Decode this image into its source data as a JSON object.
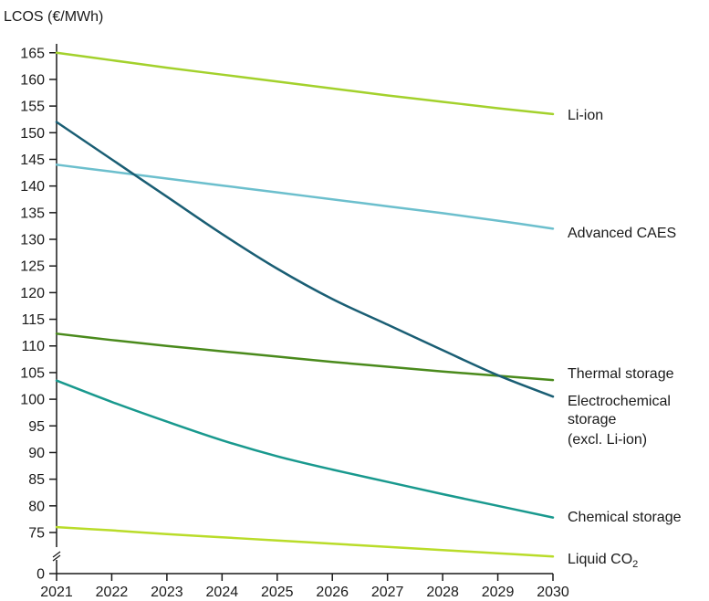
{
  "chart_data": {
    "type": "line",
    "title": "",
    "ylabel": "LCOS (€/MWh)",
    "xlabel": "",
    "x": [
      2021,
      2022,
      2023,
      2024,
      2025,
      2026,
      2027,
      2028,
      2029,
      2030
    ],
    "x_ticks": [
      "2021",
      "2022",
      "2023",
      "2024",
      "2025",
      "2026",
      "2027",
      "2028",
      "2029",
      "2030"
    ],
    "y_ticks": [
      "0",
      "75",
      "80",
      "85",
      "90",
      "95",
      "100",
      "105",
      "110",
      "115",
      "120",
      "125",
      "130",
      "135",
      "140",
      "145",
      "150",
      "155",
      "160",
      "165"
    ],
    "ylim": [
      70,
      166
    ],
    "y_axis_break": true,
    "grid": false,
    "legend": "inline labels at right end of lines",
    "series": [
      {
        "name": "Li-ion",
        "label_lines": [
          "Li-ion"
        ],
        "color": "#a3d12c",
        "values": [
          165,
          163.6,
          162.2,
          160.9,
          159.6,
          158.3,
          157.0,
          155.8,
          154.6,
          153.5
        ]
      },
      {
        "name": "Advanced CAES",
        "label_lines": [
          "Advanced CAES"
        ],
        "color": "#6cbfcd",
        "values": [
          144,
          142.7,
          141.4,
          140.1,
          138.8,
          137.5,
          136.2,
          134.9,
          133.5,
          132
        ]
      },
      {
        "name": "Thermal storage",
        "label_lines": [
          "Thermal storage"
        ],
        "color": "#4a8a1c",
        "values": [
          112.3,
          111.1,
          110.0,
          109.0,
          108.0,
          107.0,
          106.1,
          105.2,
          104.4,
          103.6
        ]
      },
      {
        "name": "Electrochemical storage (excl. Li-ion)",
        "label_lines": [
          "Electrochemical",
          "storage",
          "(excl. Li-ion)"
        ],
        "color": "#1a5e74",
        "values": [
          152,
          145.0,
          138.0,
          131.0,
          124.5,
          118.8,
          114.0,
          109.2,
          104.5,
          100.5
        ]
      },
      {
        "name": "Chemical storage",
        "label_lines": [
          "Chemical storage"
        ],
        "color": "#19998e",
        "values": [
          103.5,
          99.5,
          95.8,
          92.3,
          89.3,
          86.8,
          84.5,
          82.2,
          80.0,
          77.8
        ]
      },
      {
        "name": "Liquid CO2",
        "label_lines": [
          "Liquid CO",
          "2"
        ],
        "color": "#b9dc29",
        "values": [
          76,
          75.4,
          74.7,
          74.1,
          73.5,
          72.9,
          72.3,
          71.7,
          71.1,
          70.5
        ]
      }
    ]
  }
}
